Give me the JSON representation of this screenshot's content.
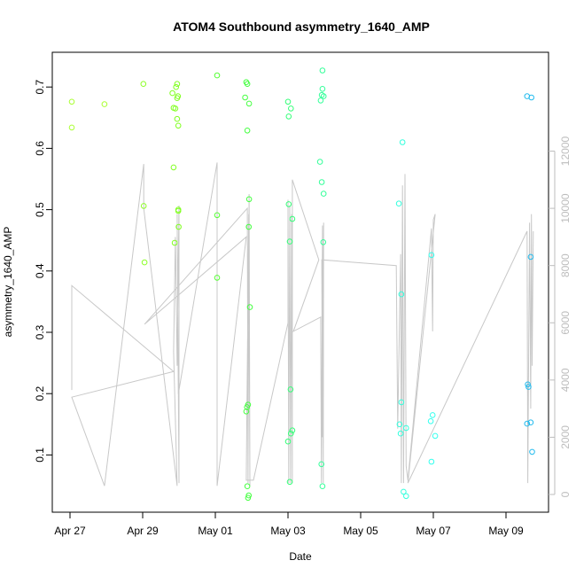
{
  "chart_data": {
    "type": "scatter",
    "title": "ATOM4 Southbound asymmetry_1640_AMP",
    "xlabel": "Date",
    "ylabel": "asymmetry_1640_AMP",
    "x_axis": {
      "ticks": [
        "Apr 27",
        "Apr 29",
        "May 01",
        "May 03",
        "May 05",
        "May 07",
        "May 09"
      ]
    },
    "y_axis": {
      "ticks": [
        "0.1",
        "0.2",
        "0.3",
        "0.4",
        "0.5",
        "0.6",
        "0.7"
      ]
    },
    "y2_axis": {
      "ticks": [
        "0",
        "2000",
        "4000",
        "6000",
        "8000",
        "10000",
        "12000"
      ],
      "color": "#bdbdbd"
    },
    "line_series_color": "#c8c8c8",
    "points": [
      {
        "d": 0.05,
        "v": 0.676,
        "c": "#aaff33"
      },
      {
        "d": 0.05,
        "v": 0.634,
        "c": "#aaff33"
      },
      {
        "d": 0.95,
        "v": 0.672,
        "c": "#aaff33"
      },
      {
        "d": 2.02,
        "v": 0.705,
        "c": "#8cff26"
      },
      {
        "d": 2.03,
        "v": 0.506,
        "c": "#8cff26"
      },
      {
        "d": 2.05,
        "v": 0.414,
        "c": "#8cff26"
      },
      {
        "d": 2.82,
        "v": 0.69,
        "c": "#80ff20"
      },
      {
        "d": 2.85,
        "v": 0.666,
        "c": "#80ff20"
      },
      {
        "d": 2.9,
        "v": 0.665,
        "c": "#80ff20"
      },
      {
        "d": 2.92,
        "v": 0.7,
        "c": "#80ff20"
      },
      {
        "d": 2.95,
        "v": 0.705,
        "c": "#80ff20"
      },
      {
        "d": 2.95,
        "v": 0.682,
        "c": "#80ff20"
      },
      {
        "d": 2.97,
        "v": 0.685,
        "c": "#80ff20"
      },
      {
        "d": 2.95,
        "v": 0.648,
        "c": "#80ff20"
      },
      {
        "d": 2.98,
        "v": 0.637,
        "c": "#80ff20"
      },
      {
        "d": 2.85,
        "v": 0.569,
        "c": "#80ff20"
      },
      {
        "d": 2.98,
        "v": 0.5,
        "c": "#80ff20"
      },
      {
        "d": 2.98,
        "v": 0.498,
        "c": "#80ff20"
      },
      {
        "d": 2.99,
        "v": 0.472,
        "c": "#80ff20"
      },
      {
        "d": 2.88,
        "v": 0.446,
        "c": "#80ff20"
      },
      {
        "d": 4.05,
        "v": 0.719,
        "c": "#55ff33"
      },
      {
        "d": 4.05,
        "v": 0.491,
        "c": "#55ff33"
      },
      {
        "d": 4.05,
        "v": 0.389,
        "c": "#55ff33"
      },
      {
        "d": 4.85,
        "v": 0.708,
        "c": "#44ff40"
      },
      {
        "d": 4.88,
        "v": 0.705,
        "c": "#44ff40"
      },
      {
        "d": 4.82,
        "v": 0.683,
        "c": "#44ff40"
      },
      {
        "d": 4.93,
        "v": 0.673,
        "c": "#44ff40"
      },
      {
        "d": 4.88,
        "v": 0.629,
        "c": "#44ff40"
      },
      {
        "d": 4.93,
        "v": 0.517,
        "c": "#44ff40"
      },
      {
        "d": 4.92,
        "v": 0.472,
        "c": "#44ff40"
      },
      {
        "d": 4.95,
        "v": 0.341,
        "c": "#44ff40"
      },
      {
        "d": 4.9,
        "v": 0.182,
        "c": "#44ff40"
      },
      {
        "d": 4.87,
        "v": 0.178,
        "c": "#44ff40"
      },
      {
        "d": 4.85,
        "v": 0.171,
        "c": "#44ff40"
      },
      {
        "d": 4.88,
        "v": 0.049,
        "c": "#44ff40"
      },
      {
        "d": 4.92,
        "v": 0.034,
        "c": "#44ff40"
      },
      {
        "d": 4.9,
        "v": 0.03,
        "c": "#44ff40"
      },
      {
        "d": 6.0,
        "v": 0.676,
        "c": "#33ff77"
      },
      {
        "d": 6.08,
        "v": 0.665,
        "c": "#33ff77"
      },
      {
        "d": 6.02,
        "v": 0.652,
        "c": "#33ff77"
      },
      {
        "d": 6.02,
        "v": 0.509,
        "c": "#33ff77"
      },
      {
        "d": 6.12,
        "v": 0.485,
        "c": "#33ff77"
      },
      {
        "d": 6.05,
        "v": 0.448,
        "c": "#33ff77"
      },
      {
        "d": 6.07,
        "v": 0.207,
        "c": "#33ff77"
      },
      {
        "d": 6.12,
        "v": 0.14,
        "c": "#33ff77"
      },
      {
        "d": 6.08,
        "v": 0.135,
        "c": "#33ff77"
      },
      {
        "d": 6.0,
        "v": 0.122,
        "c": "#33ff77"
      },
      {
        "d": 6.05,
        "v": 0.056,
        "c": "#33ff77"
      },
      {
        "d": 6.95,
        "v": 0.727,
        "c": "#33ff99"
      },
      {
        "d": 6.95,
        "v": 0.697,
        "c": "#33ff99"
      },
      {
        "d": 6.93,
        "v": 0.687,
        "c": "#33ff99"
      },
      {
        "d": 6.98,
        "v": 0.685,
        "c": "#33ff99"
      },
      {
        "d": 6.9,
        "v": 0.678,
        "c": "#33ff99"
      },
      {
        "d": 6.88,
        "v": 0.578,
        "c": "#33ff99"
      },
      {
        "d": 6.93,
        "v": 0.545,
        "c": "#33ff99"
      },
      {
        "d": 6.98,
        "v": 0.526,
        "c": "#33ff99"
      },
      {
        "d": 6.97,
        "v": 0.447,
        "c": "#33ff99"
      },
      {
        "d": 6.92,
        "v": 0.085,
        "c": "#33ff99"
      },
      {
        "d": 6.95,
        "v": 0.049,
        "c": "#33ff99"
      },
      {
        "d": 9.05,
        "v": 0.51,
        "c": "#33ffdd"
      },
      {
        "d": 9.15,
        "v": 0.61,
        "c": "#33ffdd"
      },
      {
        "d": 9.12,
        "v": 0.362,
        "c": "#33ffdd"
      },
      {
        "d": 9.12,
        "v": 0.186,
        "c": "#33ffdd"
      },
      {
        "d": 9.07,
        "v": 0.15,
        "c": "#33ffdd"
      },
      {
        "d": 9.25,
        "v": 0.144,
        "c": "#33ffdd"
      },
      {
        "d": 9.1,
        "v": 0.135,
        "c": "#33ffdd"
      },
      {
        "d": 9.18,
        "v": 0.04,
        "c": "#33ffdd"
      },
      {
        "d": 9.25,
        "v": 0.033,
        "c": "#33ffdd"
      },
      {
        "d": 9.95,
        "v": 0.426,
        "c": "#33ffee"
      },
      {
        "d": 9.98,
        "v": 0.165,
        "c": "#33ffee"
      },
      {
        "d": 9.93,
        "v": 0.155,
        "c": "#33ffee"
      },
      {
        "d": 10.05,
        "v": 0.131,
        "c": "#33ffee"
      },
      {
        "d": 9.95,
        "v": 0.089,
        "c": "#33ffee"
      },
      {
        "d": 12.58,
        "v": 0.685,
        "c": "#22bbee"
      },
      {
        "d": 12.7,
        "v": 0.683,
        "c": "#22bbee"
      },
      {
        "d": 12.68,
        "v": 0.423,
        "c": "#22bbee"
      },
      {
        "d": 12.6,
        "v": 0.215,
        "c": "#22bbee"
      },
      {
        "d": 12.62,
        "v": 0.211,
        "c": "#22bbee"
      },
      {
        "d": 12.68,
        "v": 0.153,
        "c": "#22bbee"
      },
      {
        "d": 12.58,
        "v": 0.151,
        "c": "#22bbee"
      },
      {
        "d": 12.72,
        "v": 0.105,
        "c": "#22bbee"
      }
    ],
    "line": [
      [
        0.05,
        3650
      ],
      [
        0.05,
        7300
      ],
      [
        2.85,
        4300
      ],
      [
        0.05,
        3400
      ],
      [
        0.95,
        300
      ],
      [
        2.03,
        11550
      ],
      [
        2.03,
        10000
      ],
      [
        2.95,
        300
      ],
      [
        2.85,
        5000
      ],
      [
        2.9,
        9000
      ],
      [
        2.95,
        4500
      ],
      [
        3.0,
        10100
      ],
      [
        3.0,
        400
      ],
      [
        2.95,
        9800
      ],
      [
        2.98,
        3500
      ],
      [
        4.05,
        11600
      ],
      [
        4.05,
        300
      ],
      [
        4.85,
        9000
      ],
      [
        2.05,
        5950
      ],
      [
        4.88,
        10000
      ],
      [
        4.9,
        400
      ],
      [
        4.93,
        10500
      ],
      [
        4.95,
        300
      ],
      [
        4.92,
        9800
      ],
      [
        4.85,
        500
      ],
      [
        5.05,
        500
      ],
      [
        6.0,
        6000
      ],
      [
        6.0,
        10300
      ],
      [
        6.02,
        400
      ],
      [
        6.05,
        10100
      ],
      [
        6.07,
        400
      ],
      [
        6.1,
        9800
      ],
      [
        6.12,
        400
      ],
      [
        6.12,
        11000
      ],
      [
        6.85,
        8200
      ],
      [
        6.15,
        5700
      ],
      [
        6.9,
        6200
      ],
      [
        6.92,
        400
      ],
      [
        6.95,
        9400
      ],
      [
        6.97,
        400
      ],
      [
        6.98,
        9500
      ],
      [
        6.95,
        2000
      ],
      [
        6.93,
        8200
      ],
      [
        8.98,
        8000
      ],
      [
        9.02,
        2300
      ],
      [
        9.1,
        8400
      ],
      [
        9.12,
        400
      ],
      [
        9.15,
        10800
      ],
      [
        9.18,
        400
      ],
      [
        9.22,
        11200
      ],
      [
        9.25,
        1000
      ],
      [
        9.3,
        500
      ],
      [
        9.95,
        9300
      ],
      [
        9.98,
        5700
      ],
      [
        10.0,
        9600
      ],
      [
        10.05,
        9800
      ],
      [
        9.3,
        400
      ],
      [
        12.58,
        9200
      ],
      [
        12.6,
        400
      ],
      [
        12.65,
        9500
      ],
      [
        12.68,
        3000
      ],
      [
        12.7,
        9800
      ],
      [
        12.72,
        4500
      ],
      [
        12.75,
        9200
      ]
    ]
  }
}
